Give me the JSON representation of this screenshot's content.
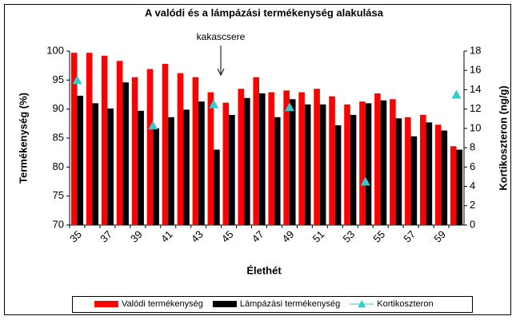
{
  "chart_data": {
    "type": "bar",
    "title": "A valódi és a lámpázási termékenység alakulása",
    "x_label": "Élethét",
    "y_label": "Termékenység (%)",
    "y2_label": "Kortikoszteron (ng/g)",
    "annotation": "kakascsere",
    "categories": [
      "35",
      null,
      "37",
      null,
      "39",
      null,
      "41",
      null,
      "43",
      null,
      "45",
      null,
      "47",
      null,
      "49",
      null,
      "51",
      null,
      "53",
      null,
      "55",
      null,
      "57",
      null,
      "59",
      null
    ],
    "series": [
      {
        "name": "Valódi termékenység",
        "color": "#ff0000",
        "type": "bar",
        "values": [
          99.7,
          99.7,
          99.2,
          98.3,
          95.5,
          96.9,
          97.8,
          96.2,
          95.5,
          92.9,
          91.1,
          93.5,
          95.5,
          92.9,
          93.2,
          92.9,
          93.5,
          92.2,
          90.8,
          91.3,
          92.7,
          91.7,
          88.6,
          89.0,
          87.3,
          83.6
        ]
      },
      {
        "name": "Lámpázási termékenység",
        "color": "#000000",
        "type": "bar",
        "values": [
          92.3,
          91.0,
          90.1,
          94.6,
          89.7,
          86.7,
          88.6,
          89.9,
          91.3,
          83.0,
          89.0,
          91.9,
          92.7,
          88.6,
          91.7,
          90.8,
          90.8,
          87.2,
          89.0,
          91.0,
          91.5,
          88.4,
          85.3,
          87.7,
          86.3,
          83.0
        ]
      },
      {
        "name": "Kortikoszteron",
        "color": "#33cccc",
        "type": "line",
        "axis": "y2",
        "values": [
          15.0,
          null,
          null,
          null,
          null,
          10.3,
          null,
          null,
          null,
          12.5,
          null,
          null,
          null,
          null,
          12.2,
          null,
          null,
          null,
          null,
          4.5,
          null,
          null,
          null,
          null,
          null,
          13.5
        ]
      }
    ],
    "ylim": [
      70,
      100
    ],
    "yticks": [
      70,
      75,
      80,
      85,
      90,
      95,
      100
    ],
    "y2lim": [
      0,
      18
    ],
    "y2ticks": [
      0,
      2,
      4,
      6,
      8,
      10,
      12,
      14,
      16,
      18
    ],
    "grid": false,
    "legend": "bottom"
  }
}
